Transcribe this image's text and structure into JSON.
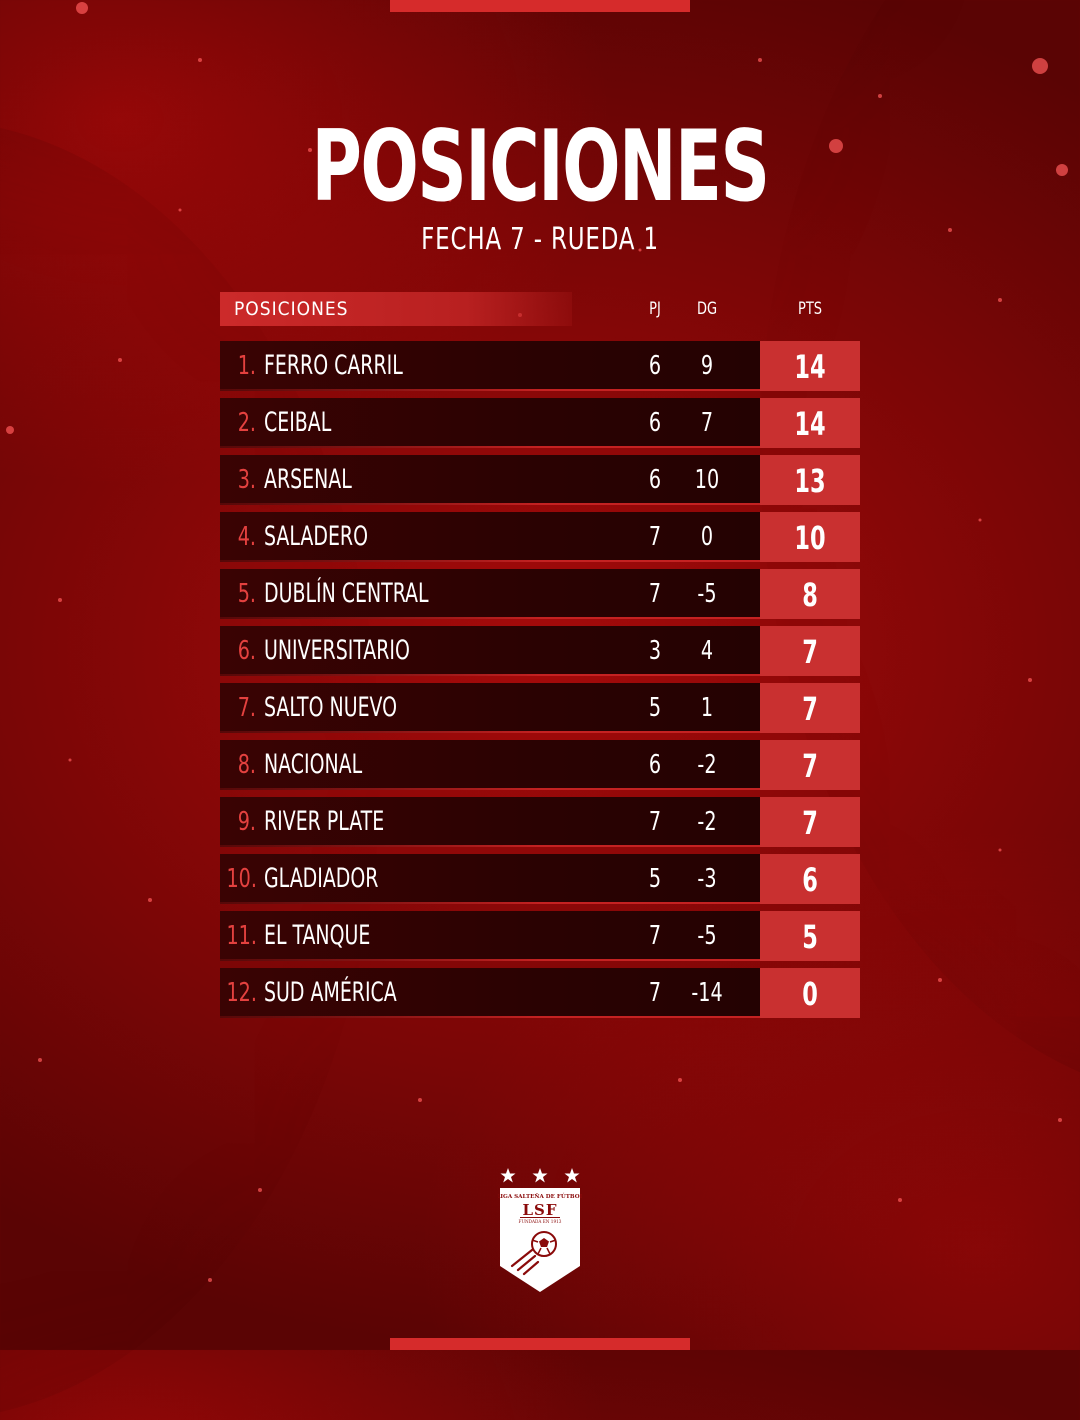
{
  "title": "POSICIONES",
  "subtitle": "FECHA 7 - RUEDA 1",
  "table": {
    "header": {
      "label": "POSICIONES",
      "pj": "PJ",
      "dg": "DG",
      "pts": "PTS"
    },
    "rows": [
      {
        "pos": "1.",
        "team": "FERRO CARRIL",
        "pj": "6",
        "dg": "9",
        "pts": "14"
      },
      {
        "pos": "2.",
        "team": "CEIBAL",
        "pj": "6",
        "dg": "7",
        "pts": "14"
      },
      {
        "pos": "3.",
        "team": "ARSENAL",
        "pj": "6",
        "dg": "10",
        "pts": "13"
      },
      {
        "pos": "4.",
        "team": "SALADERO",
        "pj": "7",
        "dg": "0",
        "pts": "10"
      },
      {
        "pos": "5.",
        "team": "DUBLÍN CENTRAL",
        "pj": "7",
        "dg": "-5",
        "pts": "8"
      },
      {
        "pos": "6.",
        "team": "UNIVERSITARIO",
        "pj": "3",
        "dg": "4",
        "pts": "7"
      },
      {
        "pos": "7.",
        "team": "SALTO NUEVO",
        "pj": "5",
        "dg": "1",
        "pts": "7"
      },
      {
        "pos": "8.",
        "team": "NACIONAL",
        "pj": "6",
        "dg": "-2",
        "pts": "7"
      },
      {
        "pos": "9.",
        "team": "RIVER PLATE",
        "pj": "7",
        "dg": "-2",
        "pts": "7"
      },
      {
        "pos": "10.",
        "team": "GLADIADOR",
        "pj": "5",
        "dg": "-3",
        "pts": "6"
      },
      {
        "pos": "11.",
        "team": "EL TANQUE",
        "pj": "7",
        "dg": "-5",
        "pts": "5"
      },
      {
        "pos": "12.",
        "team": "SUD AMÉRICA",
        "pj": "7",
        "dg": "-14",
        "pts": "0"
      }
    ]
  },
  "logo": {
    "name": "LIGA SALTEÑA DE FÚTBOL",
    "abbr": "LSF",
    "founded": "FUNDADA EN 1913",
    "stars": 3
  },
  "colors": {
    "accent": "#c93030",
    "position_number": "#e4413f",
    "row_background": "#2a0202"
  }
}
